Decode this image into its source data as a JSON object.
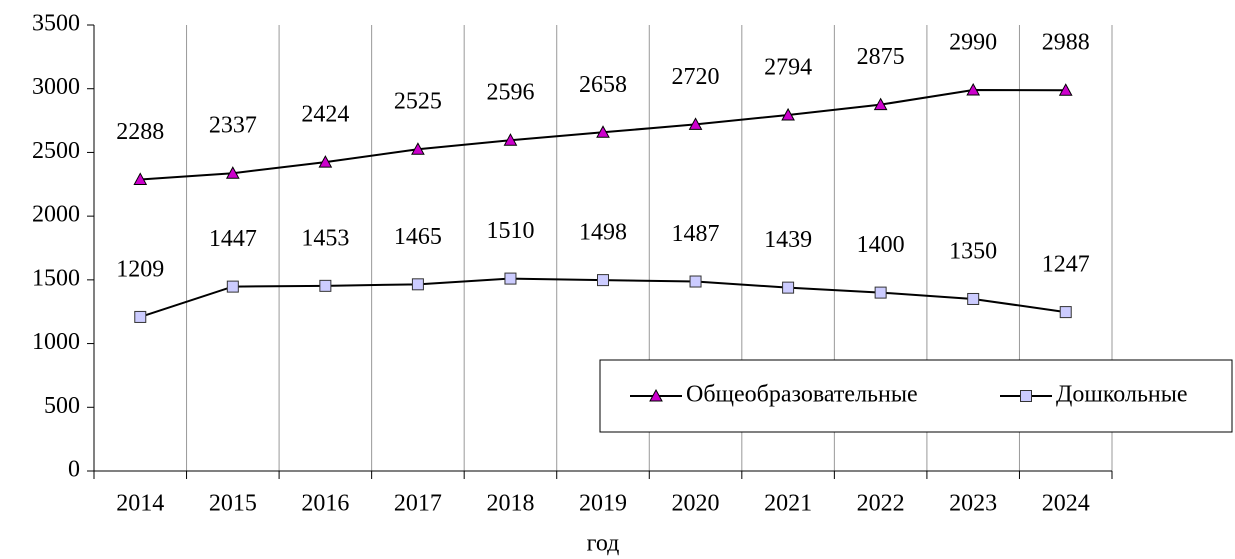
{
  "chart_data": {
    "type": "line",
    "x_label": "год",
    "categories": [
      "2014",
      "2015",
      "2016",
      "2017",
      "2018",
      "2019",
      "2020",
      "2021",
      "2022",
      "2023",
      "2024"
    ],
    "series": [
      {
        "name": "Общеобразовательные",
        "color": "#cc00cc",
        "marker": "triangle",
        "values": [
          2288,
          2337,
          2424,
          2525,
          2596,
          2658,
          2720,
          2794,
          2875,
          2990,
          2988
        ]
      },
      {
        "name": "Дошкольные",
        "color": "#ccccff",
        "marker": "square",
        "values": [
          1209,
          1447,
          1453,
          1465,
          1510,
          1498,
          1487,
          1439,
          1400,
          1350,
          1247
        ]
      }
    ],
    "ylim": [
      0,
      3500
    ],
    "yticks": [
      0,
      500,
      1000,
      1500,
      2000,
      2500,
      3000,
      3500
    ],
    "legend": "bottom-right"
  }
}
